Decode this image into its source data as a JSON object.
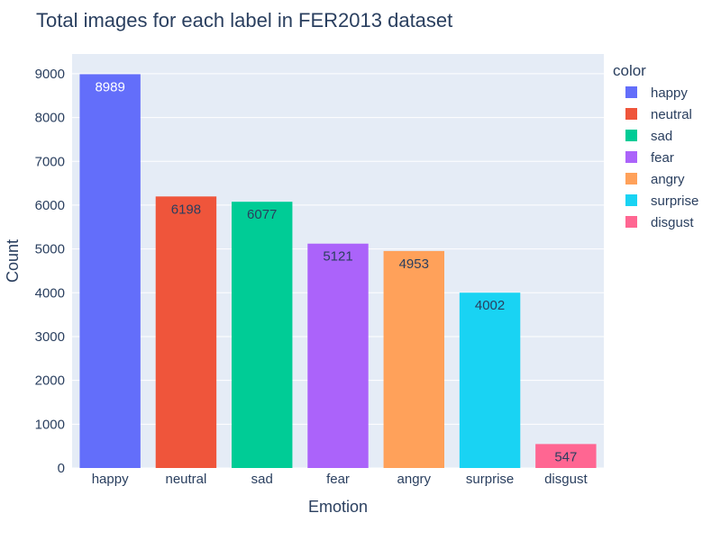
{
  "chart_data": {
    "type": "bar",
    "title": "Total images for each label in FER2013 dataset",
    "xlabel": "Emotion",
    "ylabel": "Count",
    "categories": [
      "happy",
      "neutral",
      "sad",
      "fear",
      "angry",
      "surprise",
      "disgust"
    ],
    "values": [
      8989,
      6198,
      6077,
      5121,
      4953,
      4002,
      547
    ],
    "ylim": [
      0,
      9450
    ],
    "yticks": [
      0,
      1000,
      2000,
      3000,
      4000,
      5000,
      6000,
      7000,
      8000,
      9000
    ],
    "grid": true,
    "legend": {
      "title": "color",
      "placement": "top-right",
      "entries": [
        "happy",
        "neutral",
        "sad",
        "fear",
        "angry",
        "surprise",
        "disgust"
      ]
    },
    "colors": [
      "#636efa",
      "#ef553b",
      "#00cc96",
      "#ab63fa",
      "#ffa15a",
      "#19d3f3",
      "#ff6692"
    ],
    "data_label_colors": [
      "#ffffff",
      "#2a3f5f",
      "#2a3f5f",
      "#2a3f5f",
      "#2a3f5f",
      "#2a3f5f",
      "#2a3f5f"
    ],
    "plot_background": "#e5ecf6",
    "gridline_color": "#ffffff",
    "text_color": "#2a3f5f"
  }
}
